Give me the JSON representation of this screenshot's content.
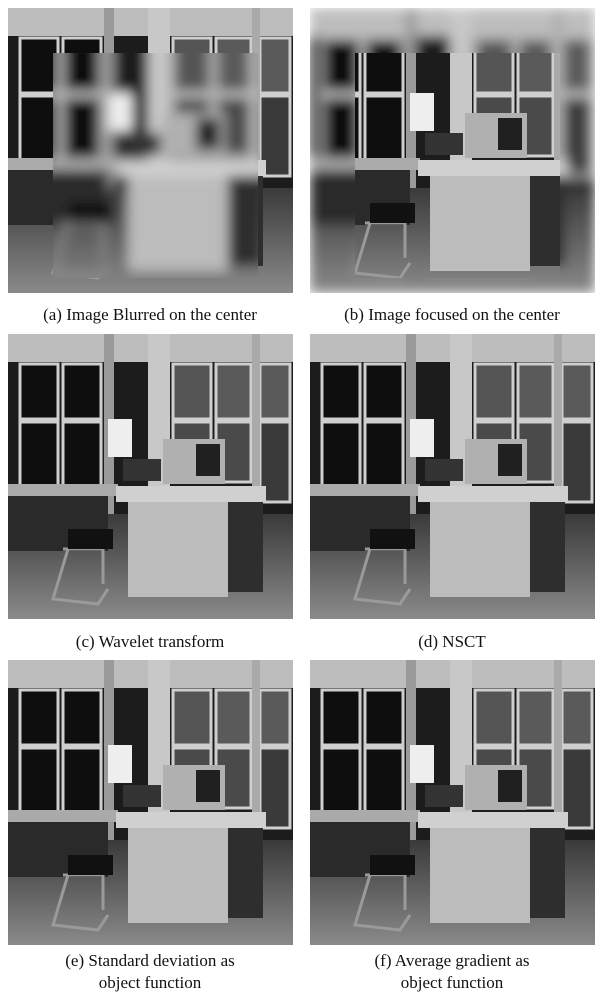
{
  "panels": [
    {
      "caption": [
        "(a) Image Blurred on  the center"
      ]
    },
    {
      "caption": [
        "(b) Image focused on the center"
      ]
    },
    {
      "caption": [
        "(c) Wavelet transform"
      ]
    },
    {
      "caption": [
        "(d) NSCT"
      ]
    },
    {
      "caption": [
        "(e) Standard deviation as",
        "object function"
      ]
    },
    {
      "caption": [
        "(f) Average gradient as",
        "object function"
      ]
    }
  ]
}
